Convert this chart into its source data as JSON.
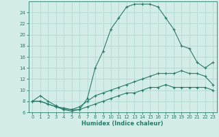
{
  "xlabel": "Humidex (Indice chaleur)",
  "xlim": [
    -0.5,
    23.5
  ],
  "ylim": [
    6,
    26
  ],
  "yticks": [
    6,
    8,
    10,
    12,
    14,
    16,
    18,
    20,
    22,
    24
  ],
  "xticks": [
    0,
    1,
    2,
    3,
    4,
    5,
    6,
    7,
    8,
    9,
    10,
    11,
    12,
    13,
    14,
    15,
    16,
    17,
    18,
    19,
    20,
    21,
    22,
    23
  ],
  "bg_color": "#d4ede8",
  "grid_color": "#b8ddd7",
  "line_color": "#2a7a6a",
  "lines": [
    {
      "x": [
        0,
        1,
        2,
        3,
        4,
        5,
        6,
        7,
        8,
        9,
        10,
        11,
        12,
        13,
        14,
        15,
        16,
        17,
        18,
        19,
        20,
        21,
        22,
        23
      ],
      "y": [
        8,
        9,
        8,
        7.2,
        6.5,
        6.2,
        6.5,
        8.5,
        14,
        17,
        21,
        23,
        25,
        25.5,
        25.5,
        25.5,
        25,
        23,
        21,
        18,
        17.5,
        15,
        14,
        15
      ]
    },
    {
      "x": [
        0,
        1,
        2,
        3,
        4,
        5,
        6,
        7,
        8,
        9,
        10,
        11,
        12,
        13,
        14,
        15,
        16,
        17,
        18,
        19,
        20,
        21,
        22,
        23
      ],
      "y": [
        8,
        8,
        7.5,
        7,
        6.5,
        6.5,
        7,
        8,
        9,
        9.5,
        10,
        10.5,
        11,
        11.5,
        12,
        12.5,
        13,
        13,
        13,
        13.5,
        13,
        13,
        12.5,
        11
      ]
    },
    {
      "x": [
        0,
        1,
        2,
        3,
        4,
        5,
        6,
        7,
        8,
        9,
        10,
        11,
        12,
        13,
        14,
        15,
        16,
        17,
        18,
        19,
        20,
        21,
        22,
        23
      ],
      "y": [
        8,
        8,
        7.5,
        7,
        6.8,
        6.5,
        6.5,
        7,
        7.5,
        8,
        8.5,
        9,
        9.5,
        9.5,
        10,
        10.5,
        10.5,
        11,
        10.5,
        10.5,
        10.5,
        10.5,
        10.5,
        10
      ]
    }
  ]
}
